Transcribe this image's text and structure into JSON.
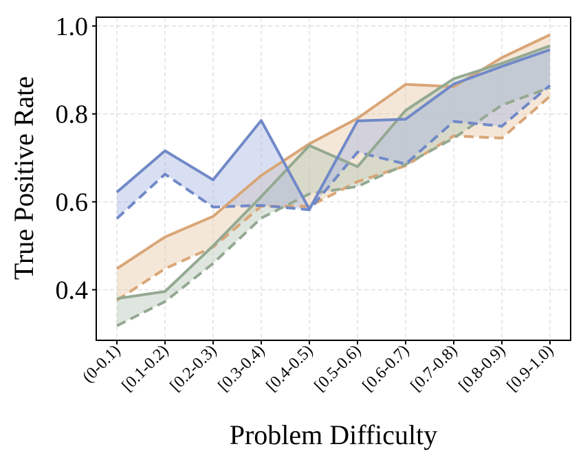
{
  "chart_data": {
    "type": "line",
    "title": "",
    "xlabel": "Problem Difficulty",
    "ylabel": "True Positive Rate",
    "ylim": [
      0.285,
      1.02
    ],
    "yticks": [
      0.4,
      0.6,
      0.8,
      1.0
    ],
    "ytick_labels": [
      "0.4",
      "0.6",
      "0.8",
      "1.0"
    ],
    "grid": true,
    "categories": [
      "(0-0.1)",
      "[0.1-0.2)",
      "[0.2-0.3)",
      "[0.3-0.4)",
      "[0.4-0.5)",
      "[0.5-0.6)",
      "[0.6-0.7)",
      "[0.7-0.8)",
      "[0.8-0.9)",
      "[0.9-1.0)"
    ],
    "series": [
      {
        "name": "orange",
        "color": "#d9a677",
        "fill_color": "#e9c9a8",
        "solid": [
          0.448,
          0.52,
          0.567,
          0.66,
          0.732,
          0.79,
          0.867,
          0.862,
          0.928,
          0.98
        ],
        "dashed": [
          0.376,
          0.448,
          0.497,
          0.59,
          0.59,
          0.646,
          0.682,
          0.75,
          0.745,
          0.84
        ]
      },
      {
        "name": "green",
        "color": "#94a992",
        "fill_color": "#b9c8b7",
        "solid": [
          0.38,
          0.396,
          0.5,
          0.612,
          0.728,
          0.68,
          0.808,
          0.88,
          0.915,
          0.955
        ],
        "dashed": [
          0.318,
          0.373,
          0.46,
          0.563,
          0.618,
          0.635,
          0.685,
          0.745,
          0.82,
          0.86
        ]
      },
      {
        "name": "blue",
        "color": "#7189c8",
        "fill_color": "#aab7e2",
        "solid": [
          0.622,
          0.716,
          0.65,
          0.785,
          0.583,
          0.784,
          0.788,
          0.868,
          0.908,
          0.946
        ],
        "dashed": [
          0.562,
          0.663,
          0.588,
          0.592,
          0.582,
          0.713,
          0.686,
          0.783,
          0.772,
          0.865
        ]
      }
    ]
  }
}
